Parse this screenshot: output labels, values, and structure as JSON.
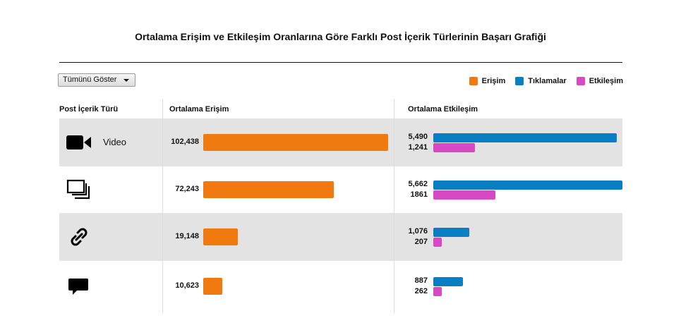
{
  "title": "Ortalama Erişim ve Etkileşim Oranlarına Göre Farklı Post İçerik Türlerinin Başarı Grafiği",
  "filter": {
    "label": "Tümünü Göster"
  },
  "legend": [
    {
      "label": "Erişim",
      "color": "#f07a10"
    },
    {
      "label": "Tıklamalar",
      "color": "#0a7ec2"
    },
    {
      "label": "Etkileşim",
      "color": "#d84ac4"
    }
  ],
  "columns": {
    "type": "Post İçerik Türü",
    "reach": "Ortalama Erişim",
    "engagement": "Ortalama Etkileşim"
  },
  "chart_data": {
    "type": "bar",
    "categories": [
      "Video",
      "",
      "",
      ""
    ],
    "icons": [
      "video-camera-icon",
      "gallery-icon",
      "link-icon",
      "speech-bubble-icon"
    ],
    "reach": {
      "values": [
        102438,
        72243,
        19148,
        10623
      ],
      "labels": [
        "102,438",
        "72,243",
        "19,148",
        "10,623"
      ]
    },
    "clicks": {
      "values": [
        5490,
        5662,
        1076,
        887
      ],
      "labels": [
        "5,490",
        "5,662",
        "1,076",
        "887"
      ]
    },
    "engagement": {
      "values": [
        1241,
        1861,
        207,
        262
      ],
      "labels": [
        "1,241",
        "1861",
        "207",
        "262"
      ]
    }
  }
}
